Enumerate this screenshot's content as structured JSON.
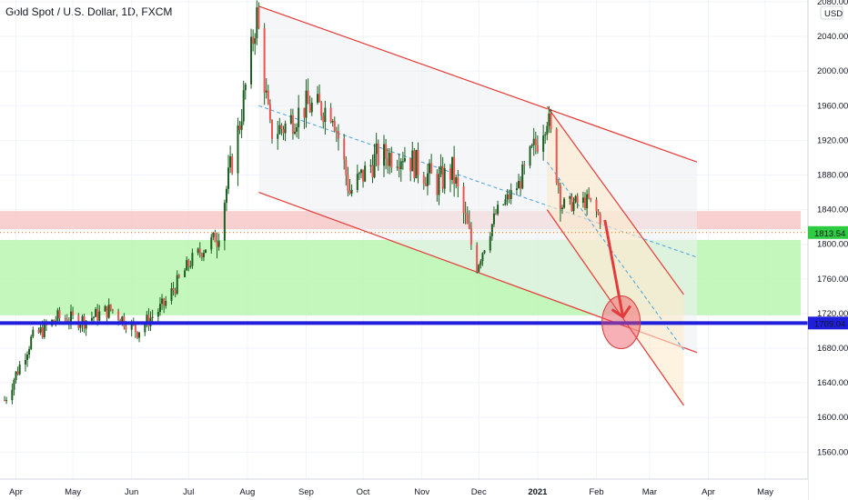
{
  "header": {
    "symbol_title": "Gold Spot / U.S. Dollar, 1D, FXCM"
  },
  "axis": {
    "currency_label": "USD",
    "price_ticks": [
      "2080.00",
      "2040.00",
      "2000.00",
      "1960.00",
      "1920.00",
      "1880.00",
      "1840.00",
      "1800.00",
      "1760.00",
      "1720.00",
      "1680.00",
      "1640.00",
      "1600.00",
      "1560.00"
    ],
    "time_ticks": [
      "Apr",
      "May",
      "Jun",
      "Jul",
      "Aug",
      "Sep",
      "Oct",
      "Nov",
      "Dec",
      "2021",
      "Feb",
      "Mar",
      "Apr",
      "May"
    ]
  },
  "markers": {
    "last_price": "1813.54",
    "support_level": "1709.04"
  },
  "colors": {
    "up": "#26a69a",
    "down": "#ef5350",
    "candle": "#1b5e20",
    "channel": "#e53935",
    "support_line": "#1e1edc",
    "support_zone": "#b9f6b0",
    "resistance_zone": "#f8c8c8",
    "price_label_bg": "#2ecc40",
    "support_label_bg": "#1e1edc"
  },
  "chart_data": {
    "type": "candlestick",
    "title": "Gold Spot / U.S. Dollar, 1D, FXCM",
    "y_unit": "USD",
    "ylim": [
      1525,
      2090
    ],
    "x_range": [
      "2020-03-26",
      "2021-05-25"
    ],
    "grid": true,
    "series": [
      {
        "name": "Gold Spot / U.S. Dollar",
        "x": [
          "2020-03-26",
          "2020-04-09",
          "2020-04-23",
          "2020-05-07",
          "2020-05-21",
          "2020-06-04",
          "2020-06-18",
          "2020-07-02",
          "2020-07-16",
          "2020-07-28",
          "2020-08-06",
          "2020-08-13",
          "2020-08-20",
          "2020-09-01",
          "2020-09-15",
          "2020-09-24",
          "2020-10-08",
          "2020-10-22",
          "2020-11-09",
          "2020-11-17",
          "2020-11-30",
          "2020-12-10",
          "2020-12-24",
          "2021-01-06",
          "2021-01-14",
          "2021-01-28",
          "2021-02-03",
          "2021-02-04"
        ],
        "close": [
          1620,
          1690,
          1715,
          1712,
          1725,
          1700,
          1730,
          1780,
          1810,
          1940,
          2065,
          1930,
          1935,
          1960,
          1955,
          1860,
          1900,
          1905,
          1870,
          1885,
          1775,
          1835,
          1875,
          1950,
          1845,
          1850,
          1830,
          1795
        ]
      }
    ],
    "annotations": {
      "last_price": 1813.54,
      "support_level": 1709.04,
      "support_zone": [
        1718,
        1805
      ],
      "resistance_zone": [
        1815,
        1830
      ]
    }
  }
}
